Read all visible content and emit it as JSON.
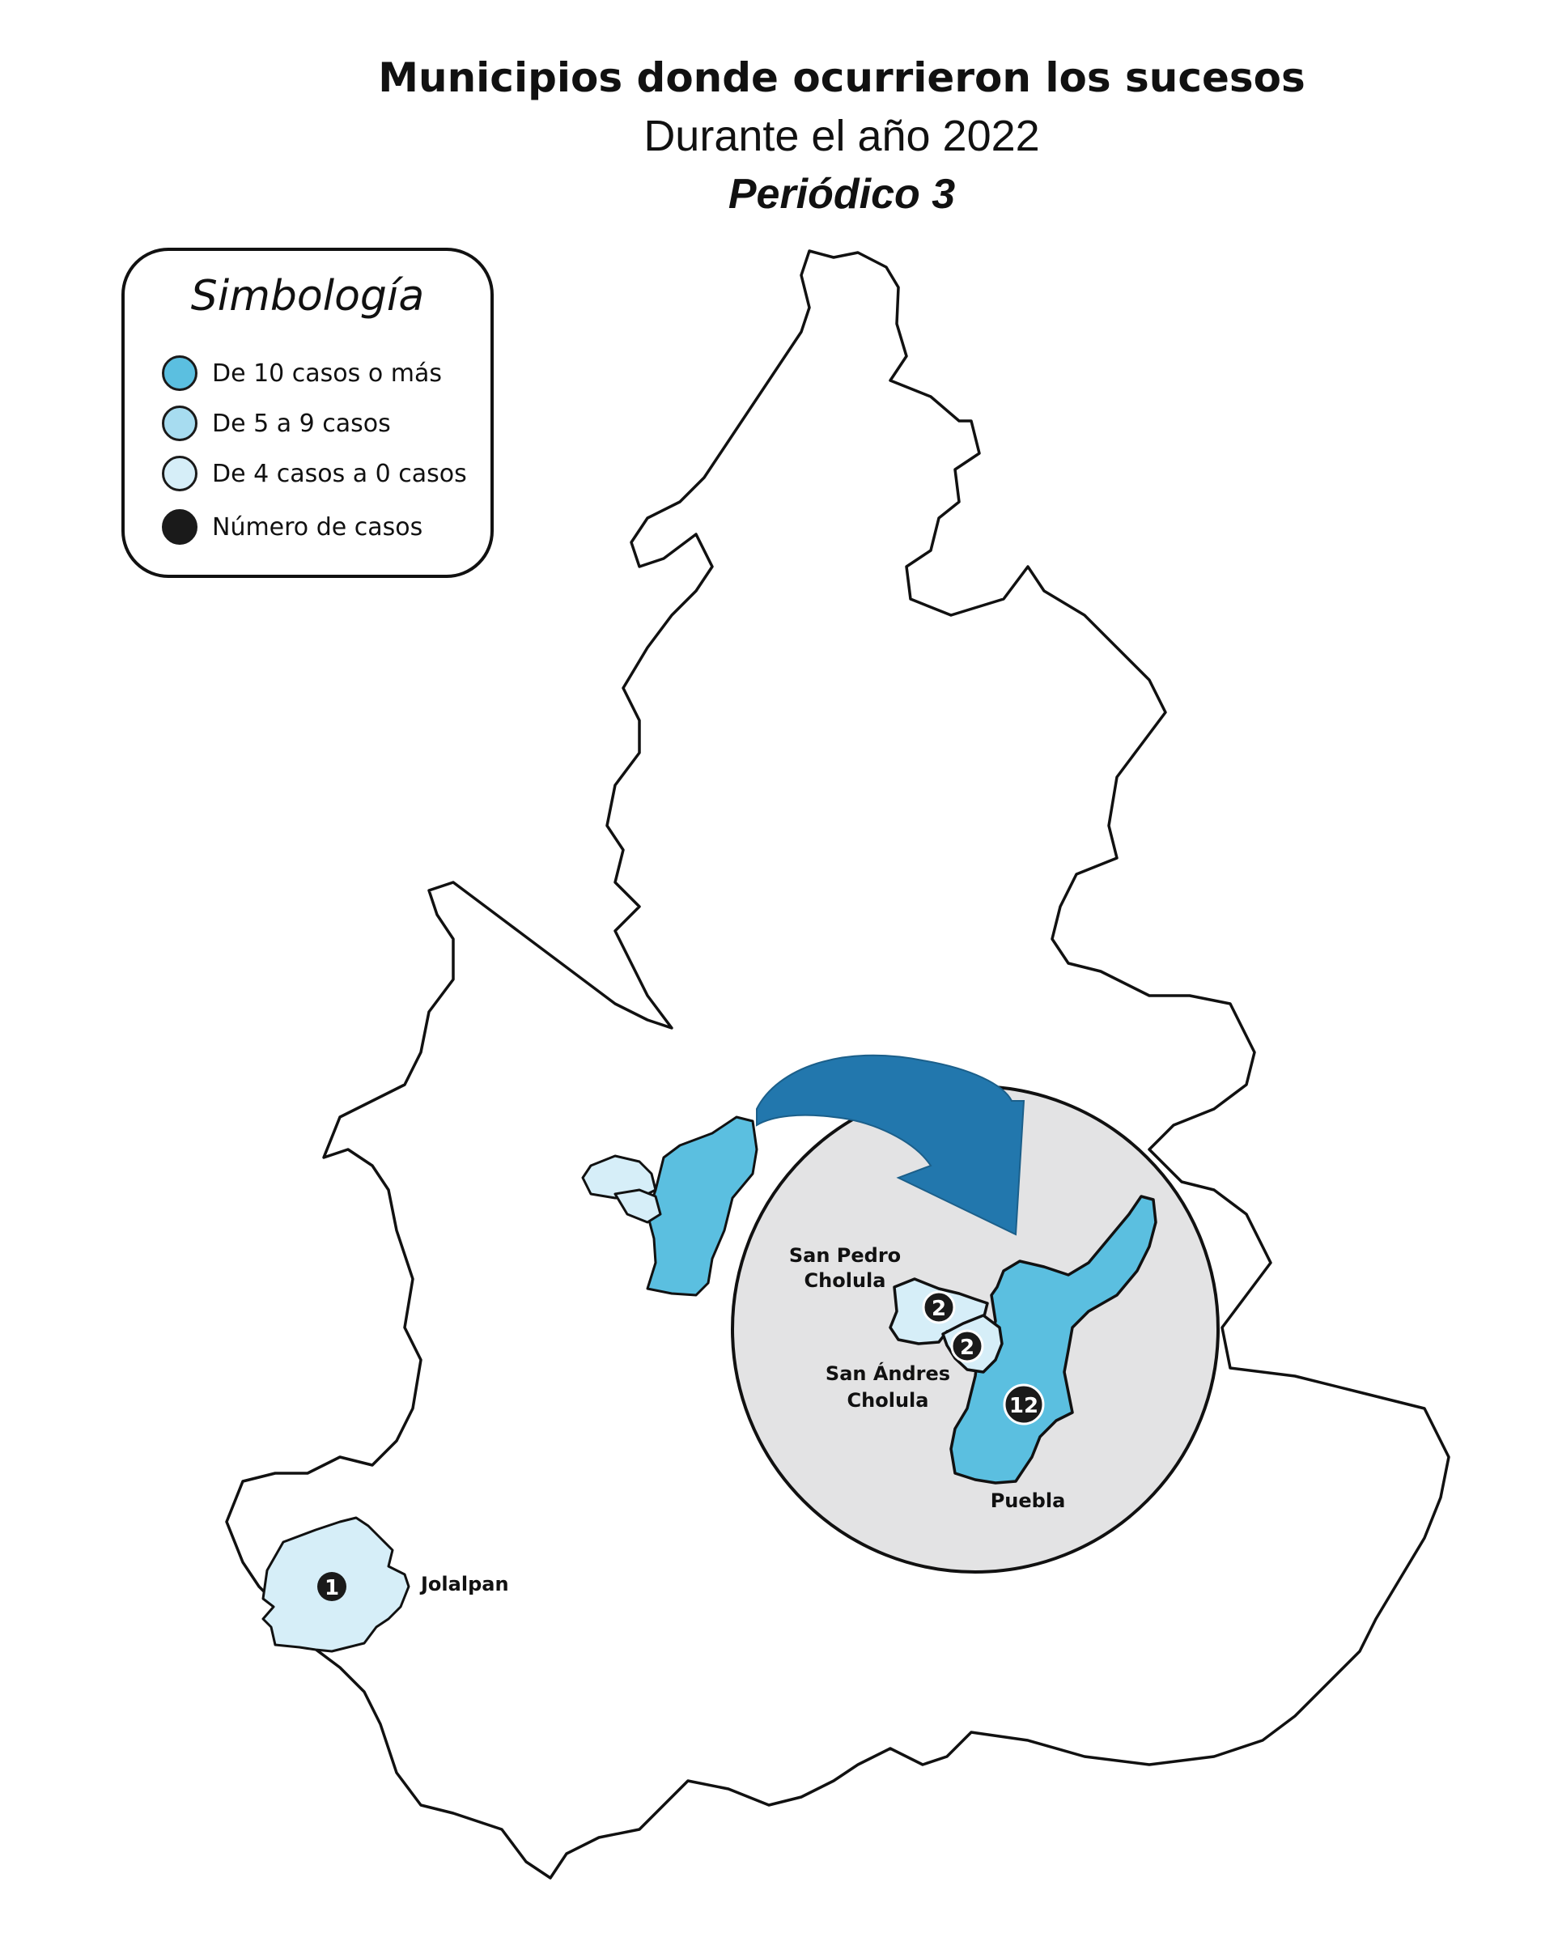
{
  "title": {
    "line1": "Municipios donde ocurrieron los sucesos",
    "line2": "Durante el año 2022",
    "line3": "Periódico 3"
  },
  "legend": {
    "title": "Simbología",
    "items": [
      {
        "label": "De 10 casos o más",
        "color": "#5bbfe0"
      },
      {
        "label": "De 5 a 9 casos",
        "color": "#a7dcf0"
      },
      {
        "label": "De 4 casos a 0 casos",
        "color": "#d6eef8"
      },
      {
        "label": "Número de casos",
        "color": "#1a1a1a"
      }
    ]
  },
  "colors": {
    "high": "#5bbfe0",
    "low": "#d6eef8",
    "inset_background": "#e3e3e4",
    "arrow": "#2277ad",
    "outline": "#111111",
    "badge": "#1a1a1a"
  },
  "municipalities": [
    {
      "name": "Jolalpan",
      "cases": "1"
    },
    {
      "name_line1": "San Pedro",
      "name_line2": "Cholula",
      "cases": "2"
    },
    {
      "name_line1": "San Ándres",
      "name_line2": "Cholula",
      "cases": "2"
    },
    {
      "name": "Puebla",
      "cases": "12"
    }
  ]
}
